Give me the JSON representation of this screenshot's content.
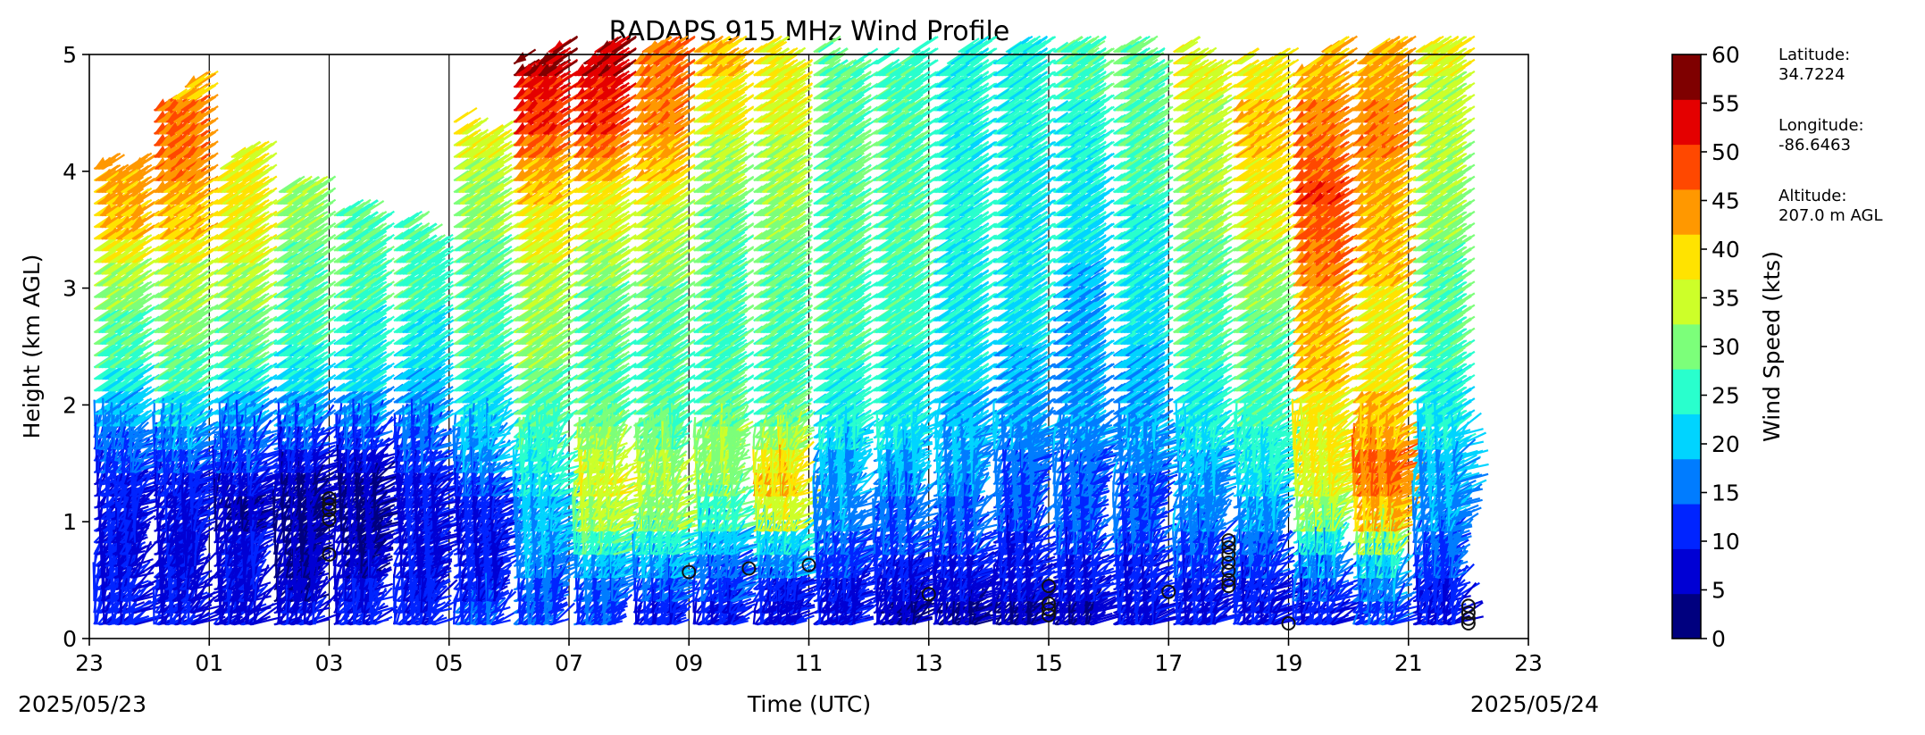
{
  "chart_data": {
    "type": "wind-barb profile",
    "title": "RADAPS 915 MHz Wind Profile",
    "xlabel": "Time (UTC)",
    "ylabel": "Height (km AGL)",
    "x_start_label": "2025/05/23",
    "x_end_label": "2025/05/24",
    "x_ticks": [
      "23",
      "01",
      "03",
      "05",
      "07",
      "09",
      "11",
      "13",
      "15",
      "17",
      "19",
      "21",
      "23"
    ],
    "x_range_hours": [
      0,
      24
    ],
    "y_ticks": [
      "0",
      "1",
      "2",
      "3",
      "4",
      "5"
    ],
    "ylim": [
      0,
      5
    ],
    "hour_divider_lines": [
      2,
      4,
      6,
      8,
      10,
      12,
      14,
      16,
      18,
      20,
      22
    ],
    "colorbar": {
      "label": "Wind Speed (kts)",
      "ticks": [
        "0",
        "5",
        "10",
        "15",
        "20",
        "25",
        "30",
        "35",
        "40",
        "45",
        "50",
        "55",
        "60"
      ],
      "bounds": [
        0,
        5,
        10,
        15,
        20,
        25,
        30,
        35,
        40,
        45,
        50,
        55,
        60
      ],
      "colors": [
        "#00007f",
        "#0000d4",
        "#0024ff",
        "#007cff",
        "#00d4ff",
        "#29ffcd",
        "#7cff7a",
        "#cdff29",
        "#ffe300",
        "#ff9800",
        "#ff4800",
        "#e40000",
        "#7f0000"
      ]
    },
    "profiles": [
      {
        "hour": 0.5,
        "top_km": 4.1,
        "speeds": [
          12,
          12,
          10,
          10,
          11,
          12,
          14,
          17,
          22,
          26,
          28,
          31,
          33,
          36,
          40,
          44,
          46,
          47,
          43,
          38,
          35,
          33
        ]
      },
      {
        "hour": 1.5,
        "top_km": 4.7,
        "speeds": [
          11,
          10,
          9,
          8,
          9,
          11,
          14,
          18,
          23,
          28,
          31,
          33,
          35,
          37,
          40,
          43,
          46,
          48,
          50,
          50,
          45,
          42
        ]
      },
      {
        "hour": 2.5,
        "top_km": 4.1,
        "speeds": [
          8,
          9,
          9,
          8,
          6,
          8,
          13,
          17,
          22,
          27,
          30,
          32,
          34,
          36,
          38,
          40,
          42,
          41,
          39,
          37,
          35,
          34
        ]
      },
      {
        "hour": 3.5,
        "top_km": 3.8,
        "speeds": [
          9,
          7,
          5,
          5,
          4,
          6,
          10,
          15,
          20,
          24,
          27,
          28,
          30,
          31,
          32,
          33,
          34,
          36,
          37,
          37,
          35,
          33
        ]
      },
      {
        "hour": 4.5,
        "top_km": 3.6,
        "speeds": [
          11,
          9,
          7,
          6,
          5,
          6,
          8,
          14,
          19,
          23,
          26,
          27,
          28,
          29,
          30,
          30,
          31,
          31,
          30,
          29,
          28,
          28
        ]
      },
      {
        "hour": 5.5,
        "top_km": 3.5,
        "speeds": [
          12,
          11,
          9,
          9,
          10,
          11,
          13,
          16,
          19,
          22,
          24,
          26,
          28,
          28,
          29,
          29,
          29,
          28,
          28,
          28,
          27,
          27
        ]
      },
      {
        "hour": 6.5,
        "top_km": 4.4,
        "speeds": [
          13,
          12,
          12,
          11,
          12,
          15,
          18,
          21,
          24,
          26,
          28,
          29,
          30,
          31,
          32,
          33,
          34,
          36,
          38,
          40,
          41,
          42
        ]
      },
      {
        "hour": 7.5,
        "top_km": 5.0,
        "speeds": [
          14,
          16,
          18,
          20,
          22,
          24,
          26,
          28,
          30,
          32,
          33,
          34,
          35,
          36,
          38,
          40,
          43,
          46,
          50,
          54,
          57,
          60
        ]
      },
      {
        "hour": 8.5,
        "top_km": 5.0,
        "speeds": [
          14,
          17,
          22,
          28,
          36,
          38,
          36,
          33,
          31,
          30,
          30,
          31,
          32,
          33,
          35,
          38,
          42,
          46,
          50,
          54,
          57,
          58
        ]
      },
      {
        "hour": 9.5,
        "top_km": 5.0,
        "speeds": [
          12,
          15,
          20,
          27,
          33,
          35,
          34,
          32,
          30,
          29,
          29,
          30,
          32,
          33,
          35,
          37,
          40,
          43,
          46,
          48,
          49,
          49
        ]
      },
      {
        "hour": 10.5,
        "top_km": 5.0,
        "speeds": [
          10,
          13,
          17,
          22,
          28,
          33,
          34,
          33,
          31,
          29,
          28,
          28,
          29,
          30,
          31,
          32,
          33,
          35,
          37,
          40,
          42,
          44
        ]
      },
      {
        "hour": 11.5,
        "top_km": 5.0,
        "speeds": [
          8,
          12,
          18,
          24,
          38,
          44,
          40,
          33,
          30,
          28,
          28,
          29,
          30,
          31,
          32,
          33,
          34,
          35,
          36,
          38,
          39,
          40
        ]
      },
      {
        "hour": 12.5,
        "top_km": 5.0,
        "speeds": [
          8,
          10,
          13,
          16,
          18,
          20,
          22,
          24,
          26,
          27,
          28,
          29,
          29,
          30,
          30,
          30,
          30,
          31,
          31,
          31,
          31,
          31
        ]
      },
      {
        "hour": 13.5,
        "top_km": 5.0,
        "speeds": [
          7,
          9,
          12,
          15,
          17,
          19,
          21,
          23,
          25,
          26,
          27,
          28,
          28,
          28,
          29,
          29,
          29,
          29,
          29,
          29,
          28,
          28
        ]
      },
      {
        "hour": 14.5,
        "top_km": 5.0,
        "speeds": [
          6,
          8,
          11,
          13,
          16,
          18,
          19,
          21,
          22,
          23,
          24,
          25,
          25,
          26,
          26,
          27,
          27,
          27,
          27,
          27,
          27,
          27
        ]
      },
      {
        "hour": 15.5,
        "top_km": 5.0,
        "speeds": [
          6,
          8,
          10,
          12,
          14,
          15,
          17,
          18,
          20,
          21,
          22,
          23,
          24,
          24,
          25,
          25,
          26,
          26,
          27,
          27,
          27,
          27
        ]
      },
      {
        "hour": 16.5,
        "top_km": 5.0,
        "speeds": [
          7,
          9,
          11,
          13,
          15,
          16,
          17,
          18,
          19,
          19,
          20,
          20,
          21,
          22,
          23,
          24,
          25,
          26,
          27,
          27,
          28,
          28
        ]
      },
      {
        "hour": 17.5,
        "top_km": 5.0,
        "speeds": [
          8,
          10,
          12,
          14,
          15,
          16,
          18,
          19,
          20,
          21,
          22,
          23,
          24,
          25,
          26,
          27,
          28,
          29,
          30,
          30,
          31,
          31
        ]
      },
      {
        "hour": 18.5,
        "top_km": 5.0,
        "speeds": [
          9,
          11,
          13,
          15,
          18,
          20,
          22,
          24,
          25,
          27,
          28,
          29,
          30,
          31,
          32,
          33,
          34,
          35,
          36,
          37,
          38,
          38
        ]
      },
      {
        "hour": 19.5,
        "top_km": 5.0,
        "speeds": [
          10,
          12,
          14,
          17,
          20,
          23,
          25,
          27,
          28,
          29,
          31,
          32,
          33,
          34,
          36,
          38,
          40,
          42,
          43,
          43,
          42,
          41
        ]
      },
      {
        "hour": 20.5,
        "top_km": 5.0,
        "speeds": [
          12,
          15,
          20,
          27,
          34,
          38,
          40,
          41,
          42,
          43,
          44,
          45,
          46,
          48,
          50,
          52,
          53,
          52,
          50,
          48,
          46,
          45
        ]
      },
      {
        "hour": 21.5,
        "top_km": 5.0,
        "speeds": [
          14,
          18,
          24,
          35,
          44,
          48,
          50,
          47,
          44,
          42,
          41,
          41,
          42,
          43,
          44,
          45,
          46,
          47,
          48,
          48,
          47,
          46
        ]
      },
      {
        "hour": 22.5,
        "top_km": 5.0,
        "speeds": [
          10,
          12,
          14,
          16,
          18,
          20,
          22,
          24,
          26,
          27,
          28,
          29,
          30,
          31,
          32,
          33,
          34,
          35,
          36,
          37,
          37,
          38
        ]
      }
    ],
    "calm_circles_hours": [
      4.0,
      4.0,
      4.0,
      4.0,
      4.0,
      10.0,
      11.0,
      12.0,
      14.0,
      16.0,
      16.0,
      16.0,
      16.0,
      18.0,
      19.0,
      19.0,
      19.0,
      19.0,
      19.0,
      19.0,
      19.0,
      20.0,
      23.0,
      23.0,
      23.0,
      23.0
    ],
    "calm_circles_km": [
      0.72,
      1.02,
      1.1,
      1.15,
      1.2,
      0.57,
      0.6,
      0.63,
      0.38,
      0.45,
      0.3,
      0.25,
      0.2,
      0.4,
      0.5,
      0.58,
      0.65,
      0.72,
      0.78,
      0.84,
      0.45,
      0.13,
      0.28,
      0.22,
      0.17,
      0.13
    ]
  },
  "site_info": {
    "latitude_label": "Latitude:",
    "latitude_value": "34.7224",
    "longitude_label": "Longitude:",
    "longitude_value": "-86.6463",
    "altitude_label": "Altitude:",
    "altitude_value": "207.0 m AGL"
  }
}
